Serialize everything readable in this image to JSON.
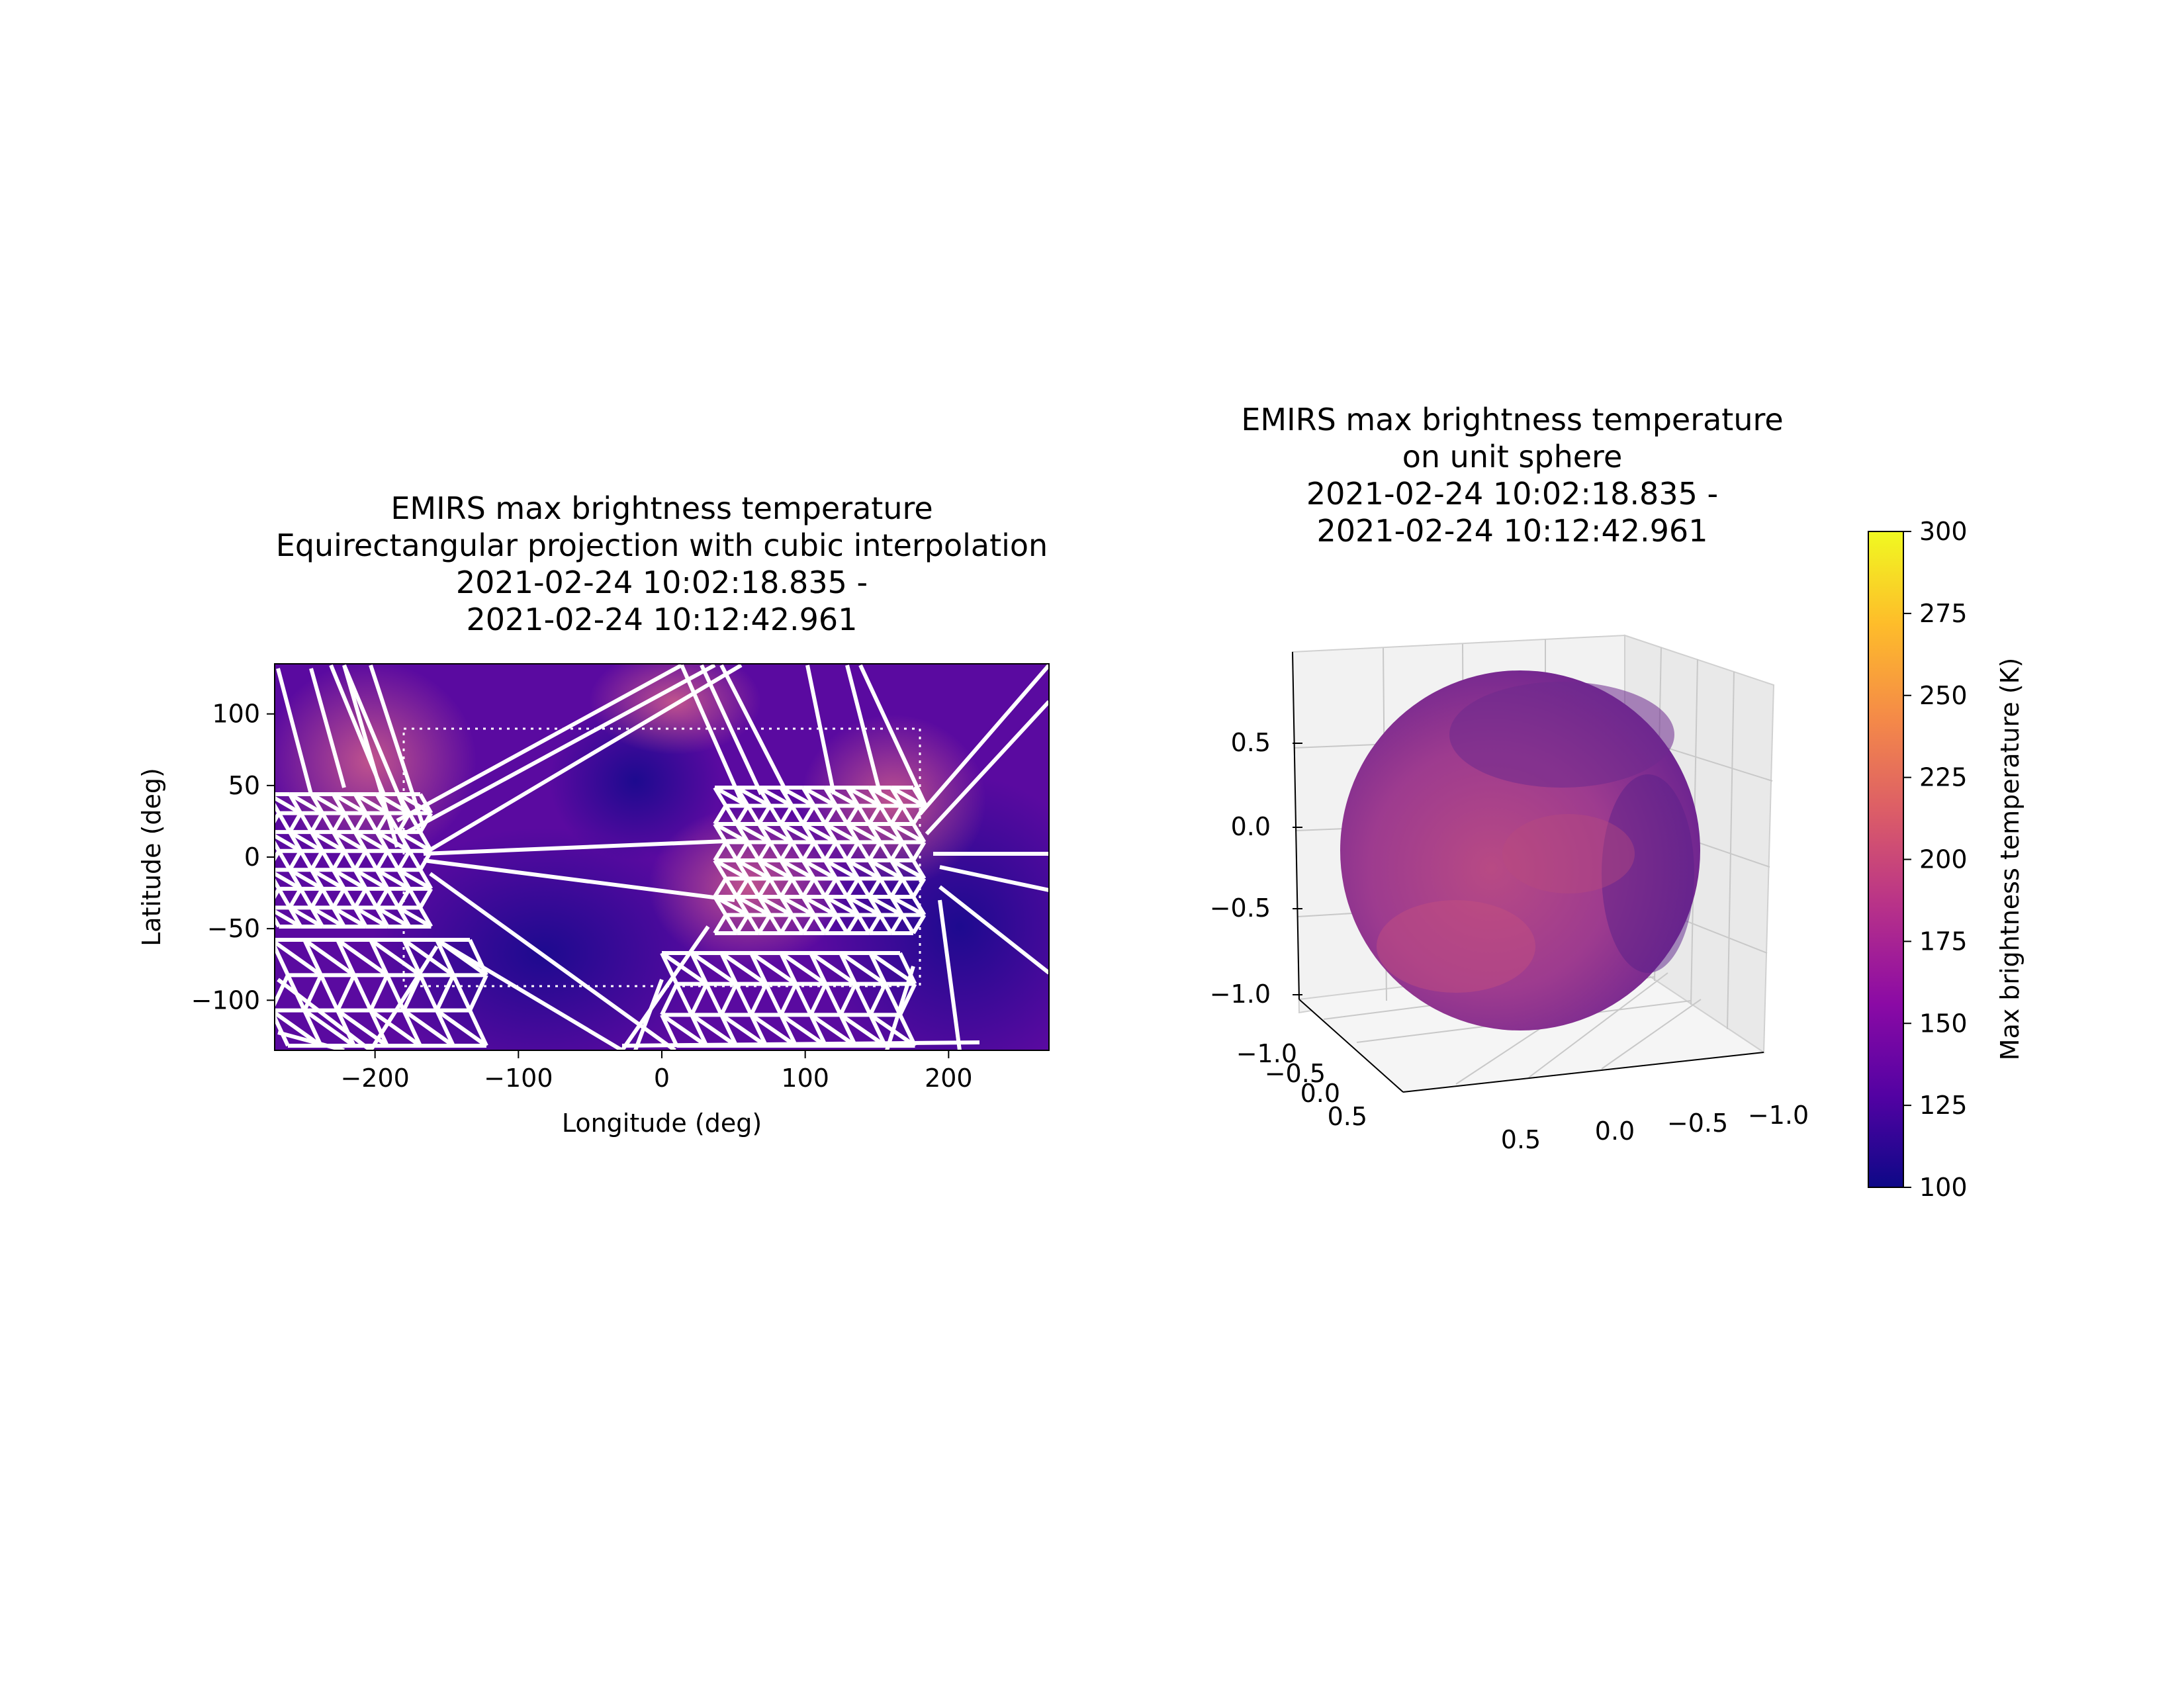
{
  "figure": {
    "left_title": [
      "EMIRS max brightness temperature",
      "Equirectangular projection with cubic interpolation",
      "2021-02-24 10:02:18.835 -",
      "2021-02-24 10:12:42.961"
    ],
    "right_title": [
      "EMIRS max brightness temperature",
      "on unit sphere",
      "2021-02-24 10:02:18.835 -",
      "2021-02-24 10:12:42.961"
    ]
  },
  "chart_data": [
    {
      "type": "heatmap",
      "subtype": "equirectangular map with triangulation mesh overlay",
      "colormap": "plasma",
      "xlabel": "Longitude (deg)",
      "ylabel": "Latitude (deg)",
      "xlim": [
        -270,
        270
      ],
      "ylim": [
        -135,
        135
      ],
      "xticks": [
        -200,
        -100,
        0,
        100,
        200
      ],
      "xtick_labels": [
        "−200",
        "−100",
        "0",
        "100",
        "200"
      ],
      "yticks": [
        100,
        50,
        0,
        -50,
        -100
      ],
      "ytick_labels": [
        "100",
        "50",
        "0",
        "−50",
        "−100"
      ],
      "dotted_box": {
        "lon": [
          -180,
          180
        ],
        "lat": [
          -90,
          90
        ]
      },
      "mesh_color": "#ffffff",
      "grid": false
    },
    {
      "type": "surface3d",
      "subtype": "unit sphere colored by temperature",
      "x_tick_labels": [
        "0.5",
        "0.0",
        "−0.5",
        "−1.0"
      ],
      "y_tick_labels": [
        "−1.0",
        "−0.5",
        "0.0",
        "0.5"
      ],
      "z_tick_labels": [
        "0.5",
        "0.0",
        "−0.5",
        "−1.0"
      ],
      "grid": true
    },
    {
      "type": "colorbar",
      "label": "Max brightness temperature (K)",
      "range": [
        100,
        300
      ],
      "ticks": [
        "300",
        "275",
        "250",
        "225",
        "200",
        "175",
        "150",
        "125",
        "100"
      ],
      "colormap": "plasma",
      "colors": [
        "#0d0887",
        "#5302a3",
        "#8b0aa5",
        "#b83289",
        "#db5c68",
        "#f48849",
        "#febd2a",
        "#f0f921"
      ]
    }
  ]
}
